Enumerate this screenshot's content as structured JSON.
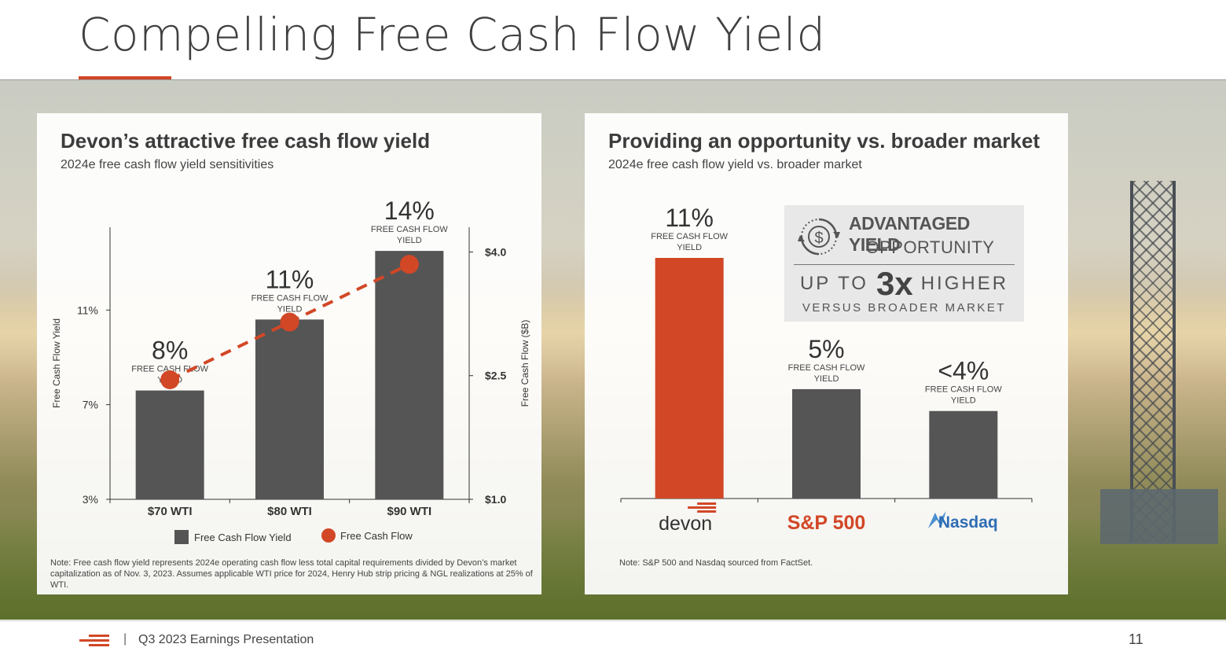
{
  "page": {
    "title": "Compelling Free Cash Flow Yield",
    "footer_text": "Q3 2023 Earnings Presentation",
    "footer_separator": "|",
    "page_number": "11",
    "accent_color": "#d24726",
    "bar_color": "#555555"
  },
  "left_panel": {
    "title": "Devon’s attractive free cash flow yield",
    "subtitle": "2024e free cash flow yield sensitivities",
    "note": "Note: Free cash flow yield represents 2024e operating cash flow less total capital requirements divided by Devon’s market capitalization as of Nov. 3, 2023. Assumes applicable WTI price for 2024, Henry Hub strip pricing & NGL realizations at 25% of WTI."
  },
  "right_panel": {
    "title": "Providing an opportunity vs. broader market",
    "subtitle": "2024e free cash flow yield vs. broader market",
    "note": "Note: S&P 500 and Nasdaq sourced from FactSet.",
    "advantaged": {
      "icon": "dollar-cycle-icon",
      "title": "ADVANTAGED YIELD",
      "subtitle": "OPPORTUNITY",
      "up_to": "UP TO",
      "multiple": "3x",
      "higher": "HIGHER",
      "versus": "VERSUS BROADER MARKET"
    }
  },
  "chart_data": [
    {
      "type": "bar",
      "categories": [
        "$70 WTI",
        "$80 WTI",
        "$90 WTI"
      ],
      "series": [
        {
          "name": "Free Cash Flow Yield",
          "type": "bar",
          "axis": "left",
          "values": [
            7.6,
            10.6,
            13.5
          ],
          "color": "#555555"
        },
        {
          "name": "Free Cash Flow",
          "type": "line",
          "axis": "right",
          "style": "dashed",
          "values": [
            2.45,
            3.15,
            3.85
          ],
          "color": "#d24726"
        }
      ],
      "bar_labels": [
        "8%",
        "11%",
        "14%"
      ],
      "bar_sublabel": "FREE CASH FLOW YIELD",
      "ylabel": "Free Cash Flow Yield",
      "ylim": [
        3,
        14.5
      ],
      "yticks": [
        3,
        7,
        11
      ],
      "yticklabels": [
        "3%",
        "7%",
        "11%"
      ],
      "y2label": "Free Cash Flow ($B)",
      "y2lim": [
        1.0,
        4.3
      ],
      "y2ticks": [
        1.0,
        2.5,
        4.0
      ],
      "y2ticklabels": [
        "$1.0",
        "$2.5",
        "$4.0"
      ],
      "legend": [
        "Free Cash Flow Yield",
        "Free Cash Flow"
      ],
      "legend_position": "bottom",
      "grid": false
    },
    {
      "type": "bar",
      "categories": [
        "devon",
        "S&P 500",
        "Nasdaq"
      ],
      "category_colors": [
        "#333333",
        "#d24726",
        "#2e6db4"
      ],
      "values": [
        11,
        5,
        4
      ],
      "bar_colors": [
        "#d24726",
        "#555555",
        "#555555"
      ],
      "bar_labels": [
        "11%",
        "5%",
        "<4%"
      ],
      "bar_sublabel": "FREE CASH FLOW YIELD",
      "ylim": [
        0,
        11
      ],
      "grid": false
    }
  ]
}
